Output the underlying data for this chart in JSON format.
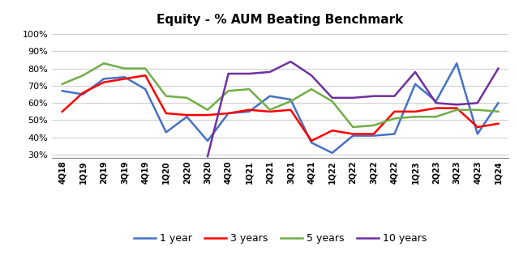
{
  "title": "Equity - % AUM Beating Benchmark",
  "categories": [
    "4Q18",
    "1Q19",
    "2Q19",
    "3Q19",
    "4Q19",
    "1Q20",
    "2Q20",
    "3Q20",
    "4Q20",
    "1Q21",
    "2Q21",
    "3Q21",
    "4Q21",
    "1Q22",
    "2Q22",
    "3Q22",
    "4Q22",
    "1Q23",
    "2Q23",
    "3Q23",
    "4Q23",
    "1Q24"
  ],
  "series": {
    "1 year": [
      0.67,
      0.65,
      0.74,
      0.75,
      0.68,
      0.43,
      0.52,
      0.38,
      0.54,
      0.55,
      0.64,
      0.62,
      0.37,
      0.31,
      0.41,
      0.41,
      0.42,
      0.71,
      0.61,
      0.83,
      0.42,
      0.6
    ],
    "3 years": [
      0.55,
      0.66,
      0.72,
      0.74,
      0.76,
      0.54,
      0.53,
      0.53,
      0.54,
      0.56,
      0.55,
      0.56,
      0.38,
      0.44,
      0.42,
      0.42,
      0.55,
      0.55,
      0.57,
      0.57,
      0.46,
      0.48
    ],
    "5 years": [
      0.71,
      0.76,
      0.83,
      0.8,
      0.8,
      0.64,
      0.63,
      0.56,
      0.67,
      0.68,
      0.56,
      0.61,
      0.68,
      0.61,
      0.46,
      0.47,
      0.51,
      0.52,
      0.52,
      0.56,
      0.56,
      0.55
    ],
    "10 years": [
      null,
      null,
      null,
      null,
      null,
      null,
      null,
      0.29,
      0.77,
      0.77,
      0.78,
      0.84,
      0.76,
      0.63,
      0.63,
      0.64,
      0.64,
      0.78,
      0.6,
      0.59,
      0.6,
      0.8
    ]
  },
  "colors": {
    "1 year": "#4472C4",
    "3 years": "#FF0000",
    "5 years": "#70AD47",
    "10 years": "#7030A0"
  },
  "ylim": [
    0.28,
    1.02
  ],
  "yticks": [
    0.3,
    0.4,
    0.5,
    0.6,
    0.7,
    0.8,
    0.9,
    1.0
  ],
  "background_color": "#FFFFFF",
  "grid_color": "#D0D0D0"
}
